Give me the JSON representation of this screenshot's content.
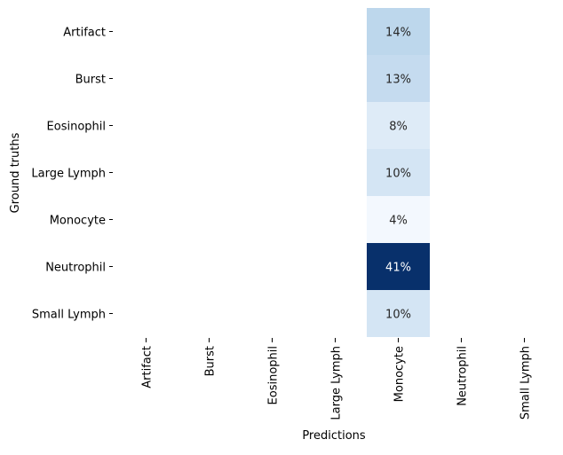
{
  "chart_data": {
    "type": "heatmap",
    "title": "",
    "xlabel": "Predictions",
    "ylabel": "Ground truths",
    "x_categories": [
      "Artifact",
      "Burst",
      "Eosinophil",
      "Large Lymph",
      "Monocyte",
      "Neutrophil",
      "Small Lymph"
    ],
    "y_categories": [
      "Artifact",
      "Burst",
      "Eosinophil",
      "Large Lymph",
      "Monocyte",
      "Neutrophil",
      "Small Lymph"
    ],
    "cells": [
      {
        "row": "Artifact",
        "col": "Monocyte",
        "value": 14,
        "label": "14%"
      },
      {
        "row": "Burst",
        "col": "Monocyte",
        "value": 13,
        "label": "13%"
      },
      {
        "row": "Eosinophil",
        "col": "Monocyte",
        "value": 8,
        "label": "8%"
      },
      {
        "row": "Large Lymph",
        "col": "Monocyte",
        "value": 10,
        "label": "10%"
      },
      {
        "row": "Monocyte",
        "col": "Monocyte",
        "value": 4,
        "label": "4%"
      },
      {
        "row": "Neutrophil",
        "col": "Monocyte",
        "value": 41,
        "label": "41%"
      },
      {
        "row": "Small Lymph",
        "col": "Monocyte",
        "value": 10,
        "label": "10%"
      }
    ],
    "colormap": "Blues",
    "colorbar": false,
    "grid": false,
    "value_range": [
      4,
      41
    ]
  }
}
